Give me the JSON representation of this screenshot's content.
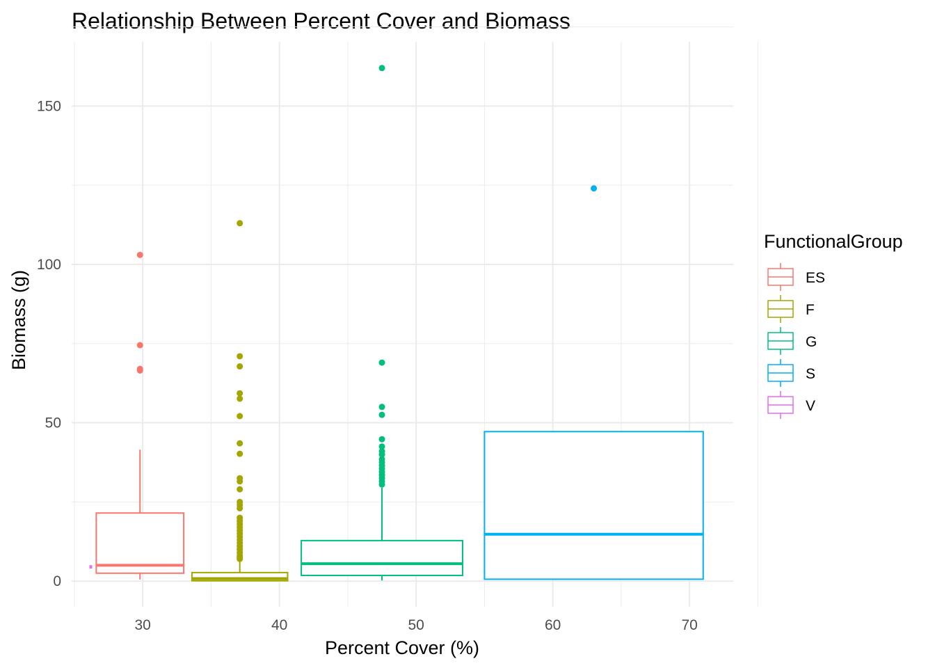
{
  "chart_data": {
    "type": "boxplot",
    "title": "Relationship Between Percent Cover and Biomass",
    "xlabel": "Percent Cover (%)",
    "ylabel": "Biomass (g)",
    "xlim": [
      24.8,
      73.2
    ],
    "ylim": [
      -8.1,
      170.3
    ],
    "x_ticks": [
      30,
      40,
      50,
      60,
      70
    ],
    "y_ticks": [
      0,
      50,
      100,
      150
    ],
    "grid": true,
    "legend": {
      "title": "FunctionalGroup",
      "position": "right"
    },
    "series": [
      {
        "name": "ES",
        "color": "#F8766D",
        "x_center": 29.8,
        "x_range": [
          26.6,
          33.0
        ],
        "whisker_low": 0.5,
        "q1": 2.5,
        "median": 5.0,
        "q3": 21.5,
        "whisker_high": 41.5,
        "outliers": [
          103.0,
          74.5,
          67.0,
          66.5
        ]
      },
      {
        "name": "F",
        "color": "#A3A500",
        "x_center": 37.1,
        "x_range": [
          33.6,
          40.6
        ],
        "whisker_low": 0.0,
        "q1": 0.1,
        "median": 0.8,
        "q3": 2.7,
        "whisker_high": 6.5,
        "outliers": [
          113.0,
          71.0,
          67.8,
          59.3,
          57.6,
          52.1,
          43.5,
          40.2,
          32.5,
          31.5,
          29.0,
          25.0,
          24.0,
          23.0,
          20.0,
          19.0,
          18.0,
          17.0,
          16.0,
          15.0,
          14.0,
          13.0,
          12.0,
          11.0,
          10.0,
          9.0,
          8.0,
          7.5,
          7.0
        ]
      },
      {
        "name": "G",
        "color": "#00BF7D",
        "x_center": 47.5,
        "x_range": [
          41.6,
          53.4
        ],
        "whisker_low": 0.2,
        "q1": 1.8,
        "median": 5.5,
        "q3": 12.8,
        "whisker_high": 29.5,
        "outliers": [
          162.0,
          69.0,
          55.0,
          52.5,
          44.8,
          42.5,
          41.0,
          40.0,
          38.5,
          37.5,
          36.5,
          35.5,
          34.5,
          33.5,
          32.5,
          31.5,
          30.5
        ]
      },
      {
        "name": "S",
        "color": "#00B0F6",
        "x_center": 63.0,
        "x_range": [
          55.0,
          71.0
        ],
        "whisker_low": 0.5,
        "q1": 0.6,
        "median": 14.8,
        "q3": 47.2,
        "whisker_high": 47.2,
        "outliers": [
          124.0
        ]
      },
      {
        "name": "V",
        "color": "#E76BF3",
        "x_center": 26.2,
        "x_range": [
          26.15,
          26.25
        ],
        "whisker_low": 4.0,
        "q1": 4.2,
        "median": 4.5,
        "q3": 4.8,
        "whisker_high": 5.0,
        "outliers": []
      }
    ]
  }
}
